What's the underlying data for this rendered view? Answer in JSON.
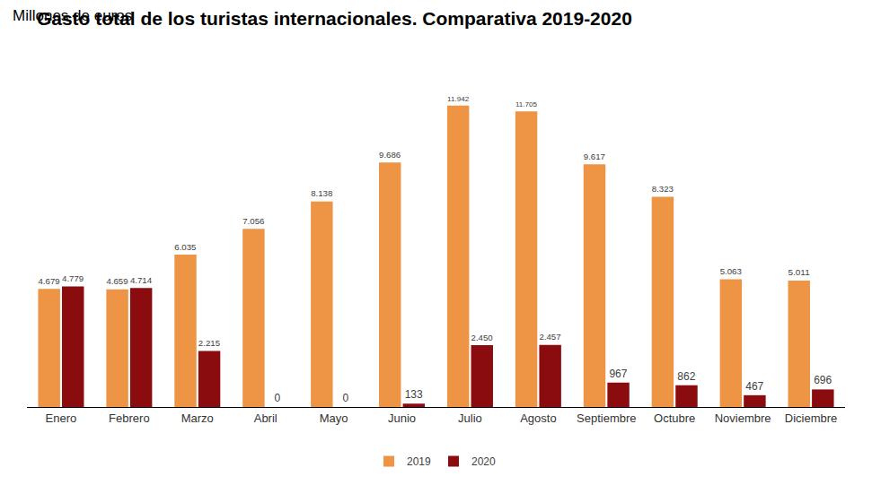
{
  "chart_data": {
    "type": "bar",
    "title": "Gasto total de los turistas internacionales. Comparativa 2019-2020",
    "subtitle": "Millones de euros",
    "categories": [
      "Enero",
      "Febrero",
      "Marzo",
      "Abril",
      "Mayo",
      "Junio",
      "Julio",
      "Agosto",
      "Septiembre",
      "Octubre",
      "Noviembre",
      "Diciembre"
    ],
    "series": [
      {
        "name": "2019",
        "color": "#EE9445",
        "values": [
          4679,
          4659,
          6035,
          7056,
          8138,
          9686,
          11942,
          11705,
          9617,
          8323,
          5063,
          5011
        ],
        "value_labels": [
          "4.679",
          "4.659",
          "6.035",
          "7.056",
          "8.138",
          "9.686",
          "11.942",
          "11.705",
          "9.617",
          "8.323",
          "5.063",
          "5.011"
        ]
      },
      {
        "name": "2020",
        "color": "#8B0C0F",
        "values": [
          4779,
          4714,
          2215,
          0,
          0,
          133,
          2450,
          2457,
          967,
          862,
          467,
          696
        ],
        "value_labels": [
          "4.779",
          "4.714",
          "2.215",
          "0",
          "0",
          "133",
          "2.450",
          "2.457",
          "967",
          "862",
          "467",
          "696"
        ]
      }
    ],
    "data_labels": true,
    "tick_labels": "x",
    "grid": false,
    "legend": "bottom"
  }
}
